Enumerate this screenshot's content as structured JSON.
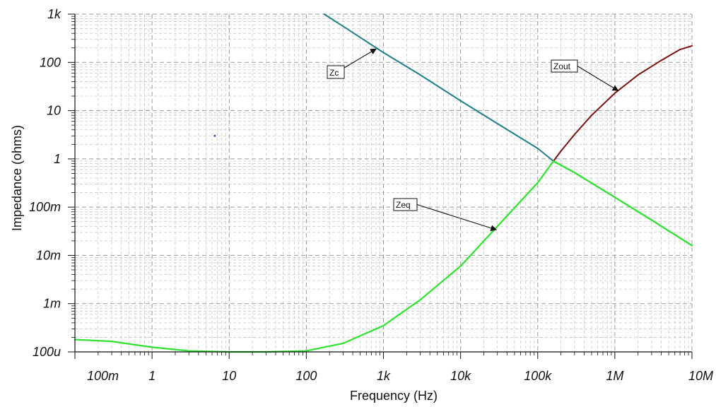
{
  "chart_data": {
    "type": "line",
    "xlabel": "Frequency (Hz)",
    "ylabel": "Impedance (ohms)",
    "x_scale": "log",
    "y_scale": "log",
    "xlim": [
      0.1,
      10000000
    ],
    "ylim": [
      0.0001,
      1000
    ],
    "grid": true,
    "x_ticks": [
      {
        "value": 0.1,
        "label": "100m"
      },
      {
        "value": 1,
        "label": "1"
      },
      {
        "value": 10,
        "label": "10"
      },
      {
        "value": 100,
        "label": "100"
      },
      {
        "value": 1000,
        "label": "1k"
      },
      {
        "value": 10000,
        "label": "10k"
      },
      {
        "value": 100000,
        "label": "100k"
      },
      {
        "value": 1000000,
        "label": "1M"
      },
      {
        "value": 10000000,
        "label": "10M"
      }
    ],
    "y_ticks": [
      {
        "value": 0.0001,
        "label": "100u"
      },
      {
        "value": 0.001,
        "label": "1m"
      },
      {
        "value": 0.01,
        "label": "10m"
      },
      {
        "value": 0.1,
        "label": "100m"
      },
      {
        "value": 1,
        "label": "1"
      },
      {
        "value": 10,
        "label": "10"
      },
      {
        "value": 100,
        "label": "100"
      },
      {
        "value": 1000,
        "label": "1k"
      }
    ],
    "series": [
      {
        "name": "Zc",
        "color": "#1f7f86",
        "points": [
          [
            170,
            1000
          ],
          [
            300,
            560
          ],
          [
            1000,
            160
          ],
          [
            3000,
            55
          ],
          [
            10000,
            16
          ],
          [
            30000,
            5.4
          ],
          [
            100000,
            1.65
          ],
          [
            160000,
            0.9
          ],
          [
            300000,
            0.52
          ],
          [
            1000000,
            0.16
          ],
          [
            3000000,
            0.054
          ],
          [
            10000000,
            0.016
          ]
        ]
      },
      {
        "name": "Zout",
        "color": "#7a1212",
        "points": [
          [
            160000,
            0.9
          ],
          [
            200000,
            1.45
          ],
          [
            300000,
            3.2
          ],
          [
            500000,
            8
          ],
          [
            1000000,
            23
          ],
          [
            2000000,
            55
          ],
          [
            4000000,
            110
          ],
          [
            7000000,
            185
          ],
          [
            10000000,
            220
          ]
        ]
      },
      {
        "name": "Zeq",
        "color": "#2ee22e",
        "points": [
          [
            0.1,
            0.00018
          ],
          [
            0.3,
            0.000165
          ],
          [
            1,
            0.000125
          ],
          [
            3,
            0.000105
          ],
          [
            10,
            0.0001
          ],
          [
            30,
            0.0001
          ],
          [
            100,
            0.000105
          ],
          [
            300,
            0.00015
          ],
          [
            1000,
            0.00035
          ],
          [
            3000,
            0.0012
          ],
          [
            10000,
            0.006
          ],
          [
            30000,
            0.04
          ],
          [
            100000,
            0.32
          ],
          [
            160000,
            0.9
          ],
          [
            300000,
            0.52
          ],
          [
            1000000,
            0.16
          ],
          [
            3000000,
            0.054
          ],
          [
            10000000,
            0.016
          ]
        ]
      }
    ],
    "annotations": [
      {
        "text": "Zc",
        "target": [
          800,
          190
        ],
        "label_at": [
          1.7,
          60
        ]
      },
      {
        "text": "Zout",
        "target": [
          1100000,
          26
        ],
        "label_at": [
          1.75,
          75
        ]
      },
      {
        "text": "Zeq",
        "target": [
          29000,
          0.034
        ],
        "label_at": [
          1.7,
          85
        ]
      }
    ],
    "stray_point": {
      "x": 6.5,
      "y": 3,
      "color": "#2a55cc"
    }
  }
}
